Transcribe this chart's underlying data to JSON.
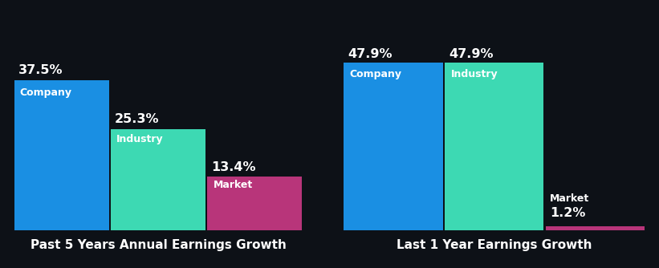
{
  "background_color": "#0d1117",
  "chart1": {
    "title": "Past 5 Years Annual Earnings Growth",
    "categories": [
      "Company",
      "Industry",
      "Market"
    ],
    "values": [
      37.5,
      25.3,
      13.4
    ],
    "colors": [
      "#1a8fe3",
      "#3dd9b3",
      "#b8357a"
    ]
  },
  "chart2": {
    "title": "Last 1 Year Earnings Growth",
    "categories": [
      "Company",
      "Industry",
      "Market"
    ],
    "values": [
      47.9,
      47.9,
      1.2
    ],
    "colors": [
      "#1a8fe3",
      "#3dd9b3",
      "#b8357a"
    ]
  },
  "bar_width": 0.98,
  "label_fontsize": 9.0,
  "value_fontsize": 11.5,
  "title_fontsize": 11,
  "title_color": "#ffffff",
  "bar_label_color": "#ffffff",
  "value_label_color": "#ffffff"
}
